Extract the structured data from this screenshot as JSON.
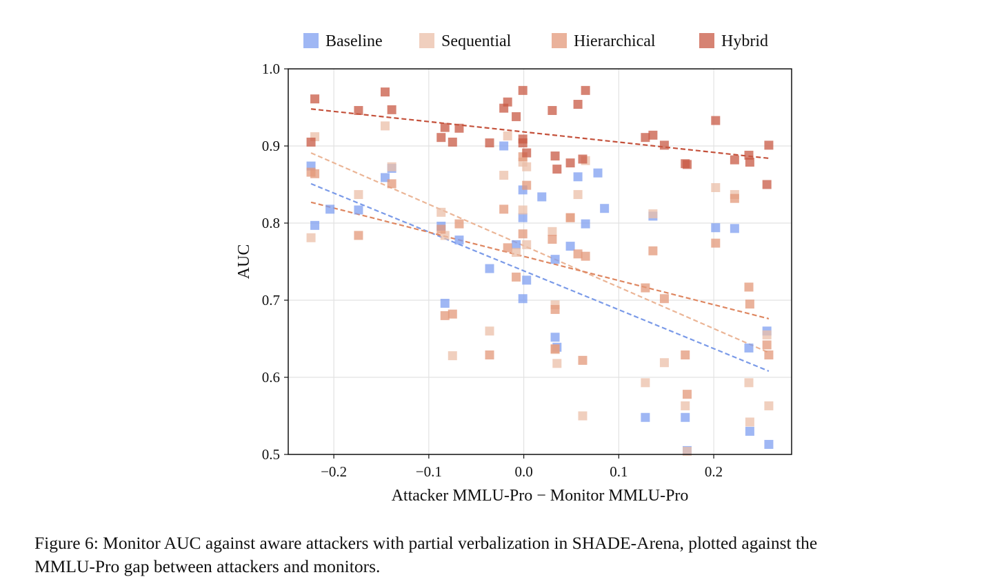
{
  "chart_data": {
    "type": "scatter",
    "xlabel": "Attacker MMLU-Pro − Monitor MMLU-Pro",
    "ylabel": "AUC",
    "xlim": [
      -0.248,
      0.282
    ],
    "ylim": [
      0.5,
      1.0
    ],
    "xticks": [
      -0.2,
      -0.1,
      0.0,
      0.1,
      0.2
    ],
    "xtick_labels": [
      "−0.2",
      "−0.1",
      "0.0",
      "0.1",
      "0.2"
    ],
    "yticks": [
      0.5,
      0.6,
      0.7,
      0.8,
      0.9,
      1.0
    ],
    "ytick_labels": [
      "0.5",
      "0.6",
      "0.7",
      "0.8",
      "0.9",
      "1.0"
    ],
    "grid": true,
    "legend_position": "top-center",
    "series": [
      {
        "name": "Baseline",
        "color": "#7f9ff0",
        "line_color": "#7a9ae8",
        "trend": [
          [
            -0.224,
            0.851
          ],
          [
            0.258,
            0.608
          ]
        ],
        "points": [
          [
            -0.224,
            0.874
          ],
          [
            -0.22,
            0.797
          ],
          [
            -0.204,
            0.818
          ],
          [
            -0.174,
            0.817
          ],
          [
            -0.146,
            0.859
          ],
          [
            -0.139,
            0.871
          ],
          [
            -0.087,
            0.796
          ],
          [
            -0.083,
            0.696
          ],
          [
            -0.068,
            0.778
          ],
          [
            -0.036,
            0.741
          ],
          [
            -0.021,
            0.9
          ],
          [
            -0.008,
            0.772
          ],
          [
            -0.001,
            0.843
          ],
          [
            -0.001,
            0.807
          ],
          [
            -0.001,
            0.702
          ],
          [
            0.003,
            0.726
          ],
          [
            0.019,
            0.834
          ],
          [
            0.033,
            0.753
          ],
          [
            0.033,
            0.652
          ],
          [
            0.035,
            0.639
          ],
          [
            0.049,
            0.77
          ],
          [
            0.057,
            0.86
          ],
          [
            0.065,
            0.799
          ],
          [
            0.078,
            0.865
          ],
          [
            0.085,
            0.819
          ],
          [
            0.136,
            0.809
          ],
          [
            0.128,
            0.548
          ],
          [
            0.17,
            0.548
          ],
          [
            0.172,
            0.505
          ],
          [
            0.202,
            0.794
          ],
          [
            0.222,
            0.793
          ],
          [
            0.237,
            0.638
          ],
          [
            0.238,
            0.53
          ],
          [
            0.256,
            0.66
          ],
          [
            0.258,
            0.513
          ]
        ]
      },
      {
        "name": "Sequential",
        "color": "#ebbfa8",
        "line_color": "#ebb596",
        "trend": [
          [
            -0.224,
            0.891
          ],
          [
            0.258,
            0.632
          ]
        ],
        "points": [
          [
            -0.224,
            0.781
          ],
          [
            -0.22,
            0.912
          ],
          [
            -0.174,
            0.837
          ],
          [
            -0.146,
            0.926
          ],
          [
            -0.139,
            0.873
          ],
          [
            -0.087,
            0.814
          ],
          [
            -0.083,
            0.784
          ],
          [
            -0.075,
            0.628
          ],
          [
            -0.036,
            0.66
          ],
          [
            -0.021,
            0.862
          ],
          [
            -0.017,
            0.913
          ],
          [
            -0.008,
            0.762
          ],
          [
            -0.001,
            0.879
          ],
          [
            -0.001,
            0.817
          ],
          [
            0.003,
            0.873
          ],
          [
            0.003,
            0.772
          ],
          [
            0.03,
            0.789
          ],
          [
            0.033,
            0.694
          ],
          [
            0.033,
            0.636
          ],
          [
            0.035,
            0.618
          ],
          [
            0.049,
            0.807
          ],
          [
            0.057,
            0.837
          ],
          [
            0.062,
            0.55
          ],
          [
            0.065,
            0.881
          ],
          [
            0.128,
            0.593
          ],
          [
            0.136,
            0.812
          ],
          [
            0.148,
            0.619
          ],
          [
            0.17,
            0.563
          ],
          [
            0.172,
            0.504
          ],
          [
            0.202,
            0.846
          ],
          [
            0.222,
            0.837
          ],
          [
            0.237,
            0.593
          ],
          [
            0.238,
            0.542
          ],
          [
            0.256,
            0.655
          ],
          [
            0.258,
            0.563
          ]
        ]
      },
      {
        "name": "Hierarchical",
        "color": "#e3987a",
        "line_color": "#de8660",
        "trend": [
          [
            -0.224,
            0.827
          ],
          [
            0.258,
            0.676
          ]
        ],
        "points": [
          [
            -0.224,
            0.866
          ],
          [
            -0.22,
            0.864
          ],
          [
            -0.174,
            0.784
          ],
          [
            -0.139,
            0.851
          ],
          [
            -0.087,
            0.792
          ],
          [
            -0.083,
            0.68
          ],
          [
            -0.075,
            0.682
          ],
          [
            -0.068,
            0.799
          ],
          [
            -0.036,
            0.629
          ],
          [
            -0.021,
            0.818
          ],
          [
            -0.017,
            0.768
          ],
          [
            -0.008,
            0.73
          ],
          [
            -0.001,
            0.886
          ],
          [
            -0.001,
            0.786
          ],
          [
            0.003,
            0.849
          ],
          [
            0.03,
            0.779
          ],
          [
            0.033,
            0.688
          ],
          [
            0.033,
            0.637
          ],
          [
            0.049,
            0.807
          ],
          [
            0.057,
            0.76
          ],
          [
            0.065,
            0.757
          ],
          [
            0.062,
            0.622
          ],
          [
            0.128,
            0.716
          ],
          [
            0.136,
            0.764
          ],
          [
            0.148,
            0.702
          ],
          [
            0.17,
            0.629
          ],
          [
            0.172,
            0.578
          ],
          [
            0.202,
            0.774
          ],
          [
            0.222,
            0.832
          ],
          [
            0.237,
            0.717
          ],
          [
            0.238,
            0.695
          ],
          [
            0.256,
            0.642
          ],
          [
            0.258,
            0.629
          ]
        ]
      },
      {
        "name": "Hybrid",
        "color": "#c85a44",
        "line_color": "#c4503a",
        "trend": [
          [
            -0.224,
            0.948
          ],
          [
            0.258,
            0.884
          ]
        ],
        "points": [
          [
            -0.224,
            0.905
          ],
          [
            -0.22,
            0.961
          ],
          [
            -0.174,
            0.946
          ],
          [
            -0.146,
            0.97
          ],
          [
            -0.139,
            0.947
          ],
          [
            -0.087,
            0.911
          ],
          [
            -0.083,
            0.924
          ],
          [
            -0.075,
            0.905
          ],
          [
            -0.068,
            0.923
          ],
          [
            -0.036,
            0.904
          ],
          [
            -0.021,
            0.949
          ],
          [
            -0.017,
            0.957
          ],
          [
            -0.008,
            0.938
          ],
          [
            -0.001,
            0.972
          ],
          [
            -0.001,
            0.909
          ],
          [
            -0.001,
            0.904
          ],
          [
            0.003,
            0.891
          ],
          [
            0.03,
            0.946
          ],
          [
            0.033,
            0.887
          ],
          [
            0.035,
            0.87
          ],
          [
            0.049,
            0.878
          ],
          [
            0.057,
            0.954
          ],
          [
            0.065,
            0.972
          ],
          [
            0.062,
            0.883
          ],
          [
            0.128,
            0.911
          ],
          [
            0.136,
            0.914
          ],
          [
            0.148,
            0.901
          ],
          [
            0.17,
            0.877
          ],
          [
            0.172,
            0.876
          ],
          [
            0.202,
            0.933
          ],
          [
            0.222,
            0.882
          ],
          [
            0.237,
            0.888
          ],
          [
            0.238,
            0.879
          ],
          [
            0.256,
            0.85
          ],
          [
            0.258,
            0.901
          ]
        ]
      }
    ]
  },
  "caption": {
    "line1": "Figure 6: Monitor AUC against aware attackers with partial verbalization in SHADE-Arena, plotted against the",
    "line2": "MMLU-Pro gap between attackers and monitors."
  }
}
